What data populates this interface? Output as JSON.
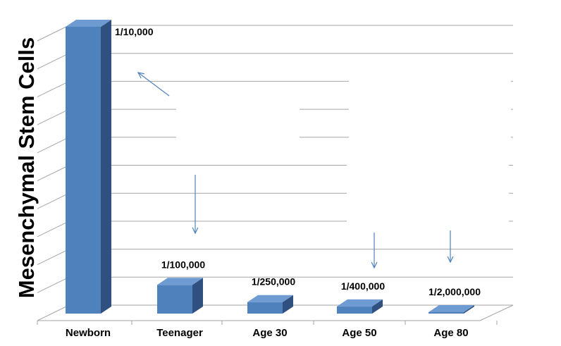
{
  "chart_data": {
    "type": "bar",
    "categories": [
      "Newborn",
      "Teenager",
      "Age 30",
      "Age 50",
      "Age 80"
    ],
    "values": [
      0.0001,
      1e-05,
      4e-06,
      2.5e-06,
      5e-07
    ],
    "data_labels": [
      "1/10,000",
      "1/100,000",
      "1/250,000",
      "1/400,000",
      "1/2,000,000"
    ],
    "title": "",
    "xlabel": "",
    "ylabel": "Mesenchymal Stem Cells",
    "ylim": [
      0,
      0.0001
    ],
    "grid": true,
    "legend": "none"
  },
  "colors": {
    "bar_front": "#4f81bd",
    "bar_side": "#30507f",
    "bar_top": "#6f9bd3",
    "gridline": "#a6a6a6",
    "arrow": "#4f81bd"
  }
}
